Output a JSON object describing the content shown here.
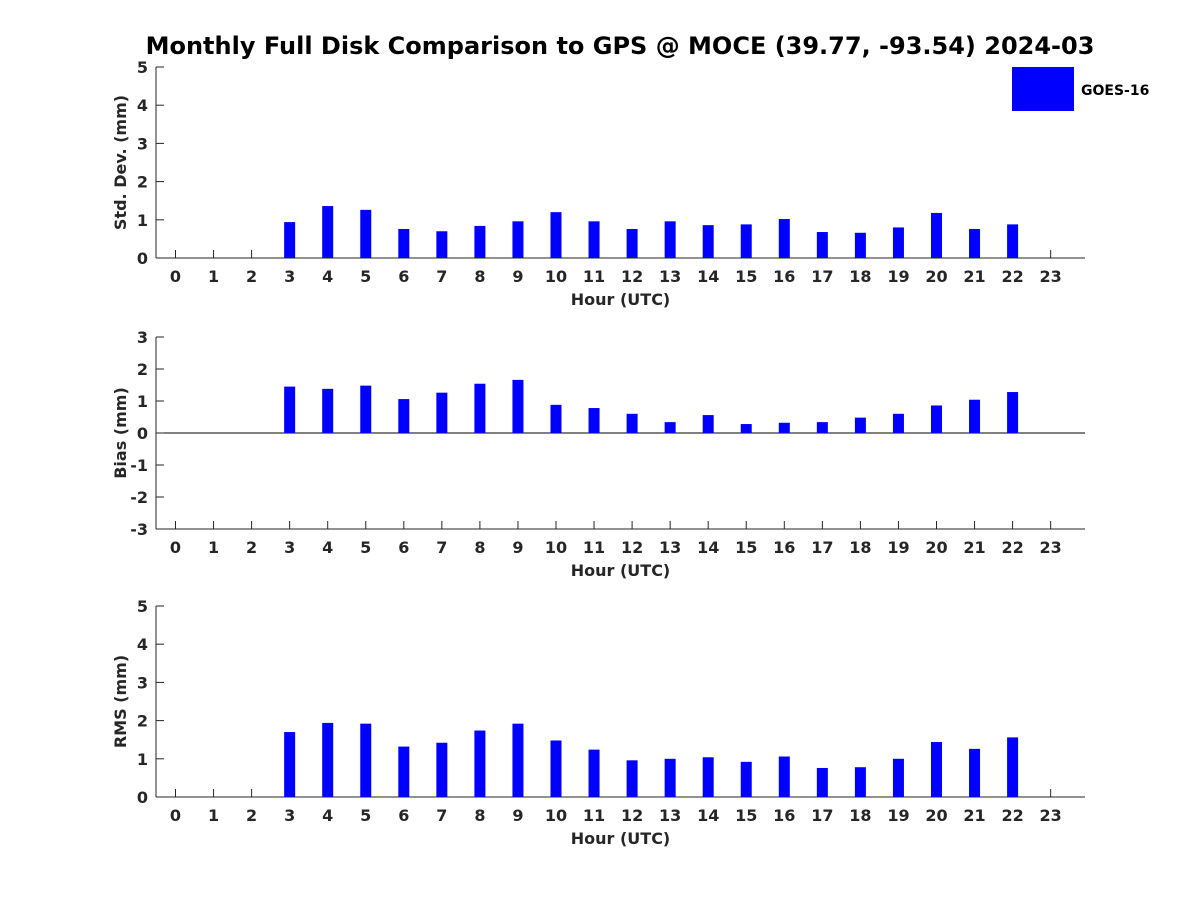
{
  "figure": {
    "title": "Monthly Full Disk Comparison to GPS @ MOCE (39.77, -93.54) 2024-03",
    "legend": {
      "label": "GOES-16",
      "color": "#0000ff",
      "placement": "top-right"
    },
    "bar_color": "#0000ff"
  },
  "chart_data": [
    {
      "type": "bar",
      "categories": [
        "0",
        "1",
        "2",
        "3",
        "4",
        "5",
        "6",
        "7",
        "8",
        "9",
        "10",
        "11",
        "12",
        "13",
        "14",
        "15",
        "16",
        "17",
        "18",
        "19",
        "20",
        "21",
        "22",
        "23"
      ],
      "series": [
        {
          "name": "GOES-16",
          "values": [
            null,
            null,
            null,
            0.94,
            1.36,
            1.26,
            0.76,
            0.7,
            0.84,
            0.96,
            1.2,
            0.96,
            0.76,
            0.96,
            0.86,
            0.88,
            1.02,
            0.68,
            0.66,
            0.8,
            1.18,
            0.76,
            0.88,
            null
          ]
        }
      ],
      "xlabel": "Hour (UTC)",
      "ylabel": "Std. Dev. (mm)",
      "ylim": [
        0,
        5
      ],
      "yticks": [
        0,
        1,
        2,
        3,
        4,
        5
      ],
      "grid": false
    },
    {
      "type": "bar",
      "categories": [
        "0",
        "1",
        "2",
        "3",
        "4",
        "5",
        "6",
        "7",
        "8",
        "9",
        "10",
        "11",
        "12",
        "13",
        "14",
        "15",
        "16",
        "17",
        "18",
        "19",
        "20",
        "21",
        "22",
        "23"
      ],
      "series": [
        {
          "name": "GOES-16",
          "values": [
            null,
            null,
            null,
            1.45,
            1.38,
            1.48,
            1.06,
            1.26,
            1.54,
            1.66,
            0.88,
            0.78,
            0.6,
            0.34,
            0.56,
            0.28,
            0.32,
            0.34,
            0.48,
            0.6,
            0.86,
            1.04,
            1.28,
            null
          ]
        }
      ],
      "xlabel": "Hour (UTC)",
      "ylabel": "Bias (mm)",
      "ylim": [
        -3,
        3
      ],
      "yticks": [
        -3,
        -2,
        -1,
        0,
        1,
        2,
        3
      ],
      "zero_line": true,
      "grid": false
    },
    {
      "type": "bar",
      "categories": [
        "0",
        "1",
        "2",
        "3",
        "4",
        "5",
        "6",
        "7",
        "8",
        "9",
        "10",
        "11",
        "12",
        "13",
        "14",
        "15",
        "16",
        "17",
        "18",
        "19",
        "20",
        "21",
        "22",
        "23"
      ],
      "series": [
        {
          "name": "GOES-16",
          "values": [
            null,
            null,
            null,
            1.7,
            1.94,
            1.92,
            1.32,
            1.42,
            1.74,
            1.92,
            1.48,
            1.24,
            0.96,
            1.0,
            1.04,
            0.92,
            1.06,
            0.76,
            0.78,
            1.0,
            1.44,
            1.26,
            1.56,
            null
          ]
        }
      ],
      "xlabel": "Hour (UTC)",
      "ylabel": "RMS (mm)",
      "ylim": [
        0,
        5
      ],
      "yticks": [
        0,
        1,
        2,
        3,
        4,
        5
      ],
      "grid": false
    }
  ]
}
